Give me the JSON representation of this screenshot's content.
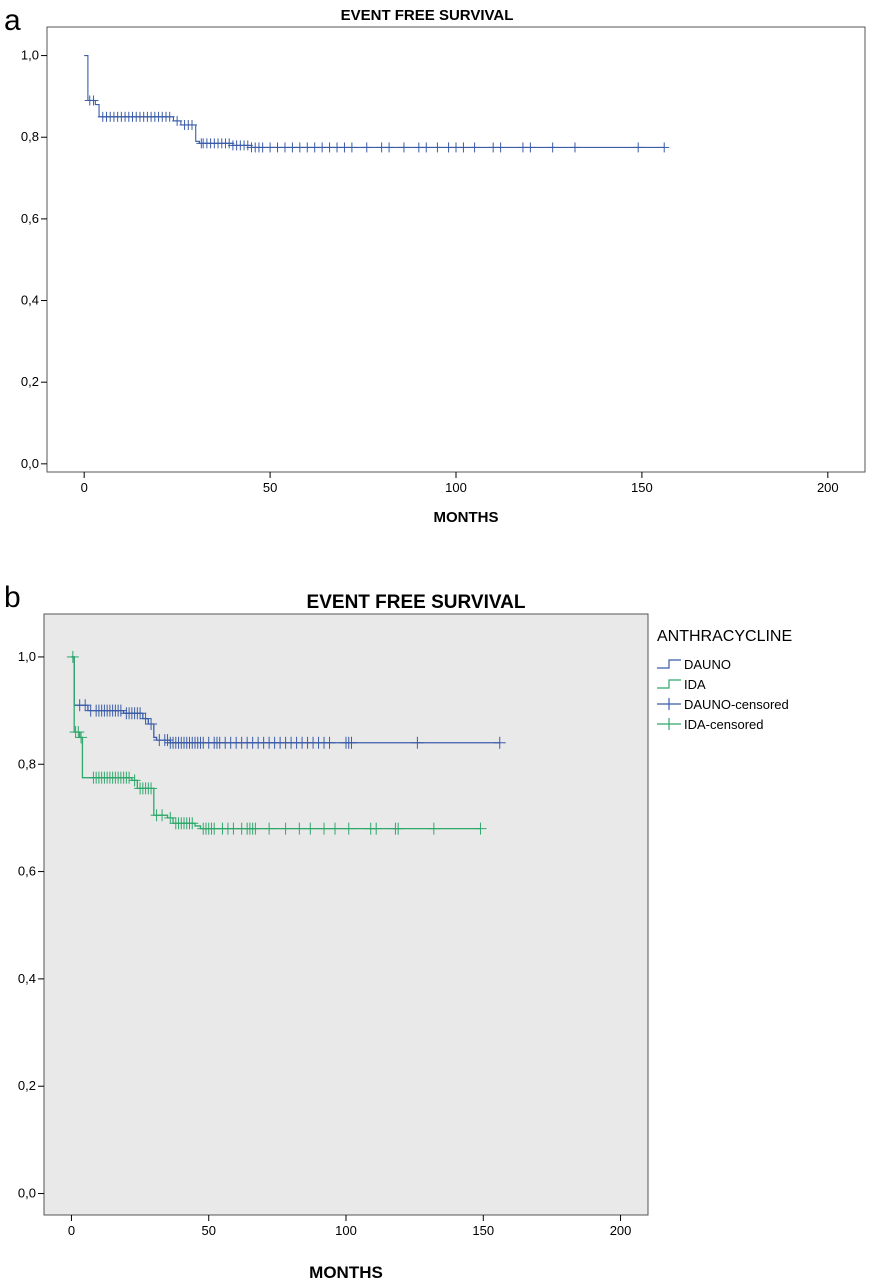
{
  "chart_data": [
    {
      "panel": "a",
      "type": "line",
      "title": "EVENT FREE SURVIVAL",
      "xlabel": "MONTHS",
      "ylabel": "",
      "xlim": [
        -10,
        210
      ],
      "ylim": [
        -0.02,
        1.07
      ],
      "xticks": [
        0,
        50,
        100,
        150,
        200
      ],
      "yticks": [
        0.0,
        0.2,
        0.4,
        0.6,
        0.8,
        1.0
      ],
      "ytick_labels": [
        "0,0",
        "0,2",
        "0,4",
        "0,6",
        "0,8",
        "1,0"
      ],
      "background": "#ffffff",
      "series": [
        {
          "color": "#3b5ca8",
          "steps": [
            [
              0,
              1.0
            ],
            [
              1,
              0.89
            ],
            [
              3,
              0.88
            ],
            [
              4,
              0.85
            ],
            [
              24,
              0.84
            ],
            [
              26,
              0.83
            ],
            [
              30,
              0.79
            ],
            [
              31,
              0.785
            ],
            [
              40,
              0.78
            ],
            [
              45,
              0.775
            ],
            [
              156,
              0.775
            ]
          ],
          "censored": [
            1.5,
            2.5,
            5,
            6,
            7,
            8,
            9,
            10,
            11,
            12,
            13,
            14,
            15,
            16,
            17,
            18,
            19,
            20,
            21,
            22,
            23,
            25,
            27,
            28,
            29,
            31.5,
            32,
            33,
            34,
            35,
            36,
            37,
            38,
            39,
            40,
            41,
            42,
            43,
            44,
            45,
            46,
            47,
            48,
            50,
            52,
            54,
            56,
            58,
            60,
            62,
            64,
            66,
            68,
            70,
            72,
            76,
            80,
            82,
            86,
            90,
            92,
            95,
            98,
            100,
            102,
            105,
            110,
            112,
            118,
            120,
            126,
            132,
            149,
            156
          ]
        }
      ]
    },
    {
      "panel": "b",
      "type": "line",
      "title": "EVENT FREE SURVIVAL",
      "xlabel": "MONTHS",
      "ylabel": "",
      "xlim": [
        -10,
        210
      ],
      "ylim": [
        -0.04,
        1.08
      ],
      "xticks": [
        0,
        50,
        100,
        150,
        200
      ],
      "yticks": [
        0.0,
        0.2,
        0.4,
        0.6,
        0.8,
        1.0
      ],
      "ytick_labels": [
        "0,0",
        "0,2",
        "0,4",
        "0,6",
        "0,8",
        "1,0"
      ],
      "background": "#e9e9e9",
      "legend_title": "ANTHRACYCLINE",
      "legend_position": "outside-right",
      "legend": [
        {
          "label": "DAUNO",
          "color": "#3b5ca8",
          "kind": "line"
        },
        {
          "label": "IDA",
          "color": "#2ea86b",
          "kind": "line"
        },
        {
          "label": "DAUNO-censored",
          "color": "#3b5ca8",
          "kind": "cross"
        },
        {
          "label": "IDA-censored",
          "color": "#2ea86b",
          "kind": "cross"
        }
      ],
      "series": [
        {
          "name": "DAUNO",
          "color": "#3b5ca8",
          "steps": [
            [
              0,
              1.0
            ],
            [
              1,
              0.91
            ],
            [
              6,
              0.9
            ],
            [
              19,
              0.895
            ],
            [
              26,
              0.885
            ],
            [
              28,
              0.875
            ],
            [
              30,
              0.85
            ],
            [
              31,
              0.845
            ],
            [
              36,
              0.84
            ],
            [
              156,
              0.84
            ]
          ],
          "censored": [
            3,
            5,
            7,
            9,
            10,
            11,
            12,
            13,
            14,
            15,
            16,
            17,
            18,
            20,
            21,
            22,
            23,
            24,
            25,
            27,
            29,
            32,
            34,
            35,
            36,
            37,
            38,
            39,
            40,
            41,
            42,
            43,
            44,
            45,
            46,
            47,
            48,
            50,
            52,
            53,
            54,
            56,
            58,
            60,
            62,
            64,
            66,
            68,
            70,
            72,
            74,
            76,
            78,
            80,
            82,
            84,
            86,
            88,
            90,
            92,
            94,
            100,
            101,
            102,
            126,
            156
          ]
        },
        {
          "name": "IDA",
          "color": "#2ea86b",
          "steps": [
            [
              0,
              1.0
            ],
            [
              1,
              0.86
            ],
            [
              3,
              0.85
            ],
            [
              4,
              0.775
            ],
            [
              22,
              0.77
            ],
            [
              24,
              0.755
            ],
            [
              30,
              0.705
            ],
            [
              35,
              0.7
            ],
            [
              37,
              0.69
            ],
            [
              45,
              0.685
            ],
            [
              47,
              0.68
            ],
            [
              149,
              0.68
            ]
          ],
          "censored": [
            0.5,
            1.5,
            2.5,
            3.5,
            8,
            9,
            10,
            11,
            12,
            13,
            14,
            15,
            16,
            17,
            18,
            19,
            20,
            21,
            23,
            25,
            26,
            27,
            28,
            29,
            31,
            33,
            36,
            38,
            39,
            40,
            41,
            42,
            43,
            44,
            48,
            49,
            50,
            51,
            52,
            55,
            57,
            59,
            62,
            64,
            65,
            66,
            67,
            72,
            78,
            83,
            87,
            92,
            96,
            101,
            109,
            111,
            118,
            119,
            132,
            149
          ]
        }
      ]
    }
  ]
}
